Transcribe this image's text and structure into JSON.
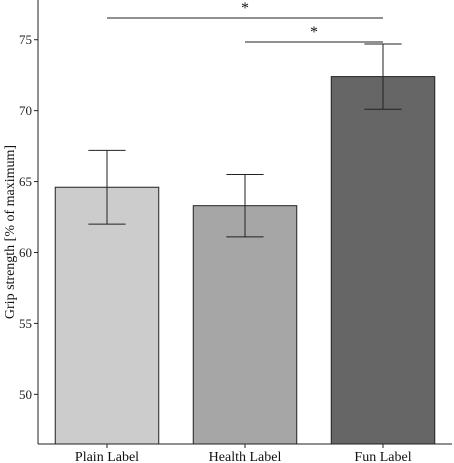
{
  "chart_data": {
    "type": "bar",
    "categories": [
      "Plain Label",
      "Health Label",
      "Fun Label"
    ],
    "values": [
      64.6,
      63.3,
      72.4
    ],
    "error_upper": [
      67.2,
      65.5,
      74.7
    ],
    "error_lower": [
      62.0,
      61.1,
      70.1
    ],
    "bar_colors": [
      "#cccccc",
      "#a6a6a6",
      "#666666"
    ],
    "ylabel": "Grip strength [% of maximum]",
    "xlabel": "",
    "title": "",
    "ylim": [
      46.5,
      77.8
    ],
    "yticks": [
      50,
      55,
      60,
      65,
      70,
      75
    ],
    "grid": false,
    "significance": [
      {
        "from": "Plain Label",
        "to": "Fun Label",
        "label": "*"
      },
      {
        "from": "Health Label",
        "to": "Fun Label",
        "label": "*"
      }
    ]
  }
}
